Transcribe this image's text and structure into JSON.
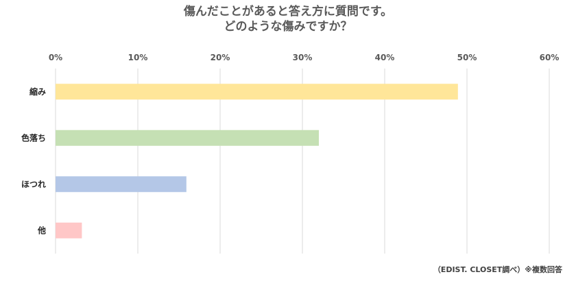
{
  "chart_data": {
    "type": "bar",
    "orientation": "horizontal",
    "title_lines": [
      "傷んだことがあると答え方に質問です。",
      "どのような傷みですか？"
    ],
    "categories": [
      "縮み",
      "色落ち",
      "ほつれ",
      "他"
    ],
    "values": [
      48.9,
      32.0,
      15.9,
      3.2
    ],
    "bar_colors": [
      "#FFE699",
      "#C5E0B4",
      "#B4C7E7",
      "#FFC7C7"
    ],
    "x_ticks": [
      "0%",
      "10%",
      "20%",
      "30%",
      "40%",
      "50%",
      "60%"
    ],
    "xlim": [
      0,
      60
    ],
    "grid": true,
    "xlabel": "",
    "ylabel": ""
  },
  "source_note": "（EDIST. CLOSET調べ）※複数回答"
}
